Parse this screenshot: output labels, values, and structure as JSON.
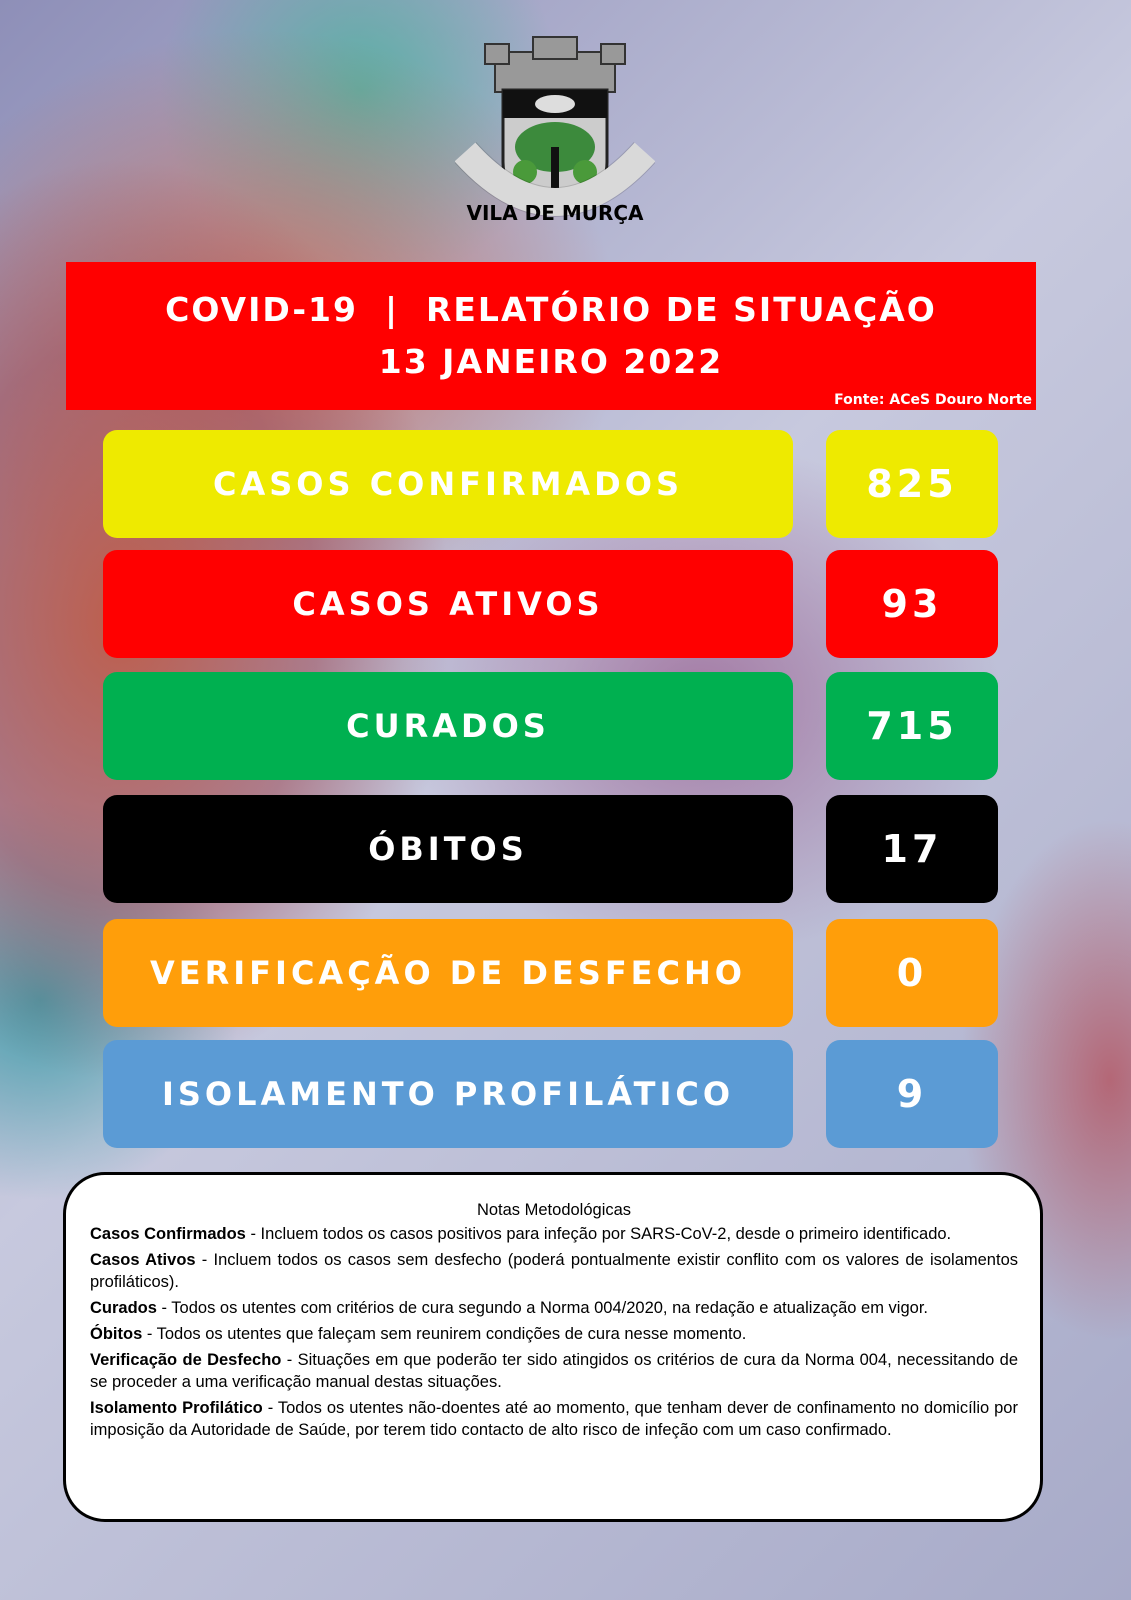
{
  "logo": {
    "text": "VILA DE MURÇA"
  },
  "header": {
    "title": "COVID-19  |  RELATÓRIO DE SITUAÇÃO",
    "date": "13 JANEIRO 2022",
    "source": "Fonte: ACeS Douro Norte"
  },
  "stats": [
    {
      "label": "CASOS CONFIRMADOS",
      "value": "825",
      "color": "#eeea00"
    },
    {
      "label": "CASOS ATIVOS",
      "value": "93",
      "color": "#ff0000"
    },
    {
      "label": "CURADOS",
      "value": "715",
      "color": "#00b050"
    },
    {
      "label": "ÓBITOS",
      "value": "17",
      "color": "#000000"
    },
    {
      "label": "VERIFICAÇÃO DE DESFECHO",
      "value": "0",
      "color": "#ff9e0a"
    },
    {
      "label": "ISOLAMENTO PROFILÁTICO",
      "value": "9",
      "color": "#5b9bd5"
    }
  ],
  "notes": {
    "title": "Notas Metodológicas",
    "items": [
      {
        "term": "Casos Confirmados",
        "text": " - Incluem todos os casos positivos para infeção por SARS-CoV-2, desde o primeiro identificado."
      },
      {
        "term": "Casos Ativos",
        "text": " - Incluem todos os casos sem desfecho (poderá pontualmente existir conflito com os valores de isolamentos profiláticos)."
      },
      {
        "term": "Curados",
        "text": " - Todos os utentes com critérios de cura segundo a Norma 004/2020, na redação e atualização em vigor."
      },
      {
        "term": "Óbitos",
        "text": " - Todos os utentes que faleçam sem reunirem condições de cura nesse momento."
      },
      {
        "term": "Verificação de Desfecho",
        "text": " - Situações em que poderão ter sido atingidos os critérios de cura da Norma 004, necessitando de se proceder a uma verificação manual destas situações."
      },
      {
        "term": "Isolamento Profilático",
        "text": " - Todos os utentes não-doentes até ao momento, que tenham dever de confinamento no domicílio por imposição da Autoridade de Saúde, por terem tido contacto de alto risco de infeção com um caso confirmado."
      }
    ]
  }
}
